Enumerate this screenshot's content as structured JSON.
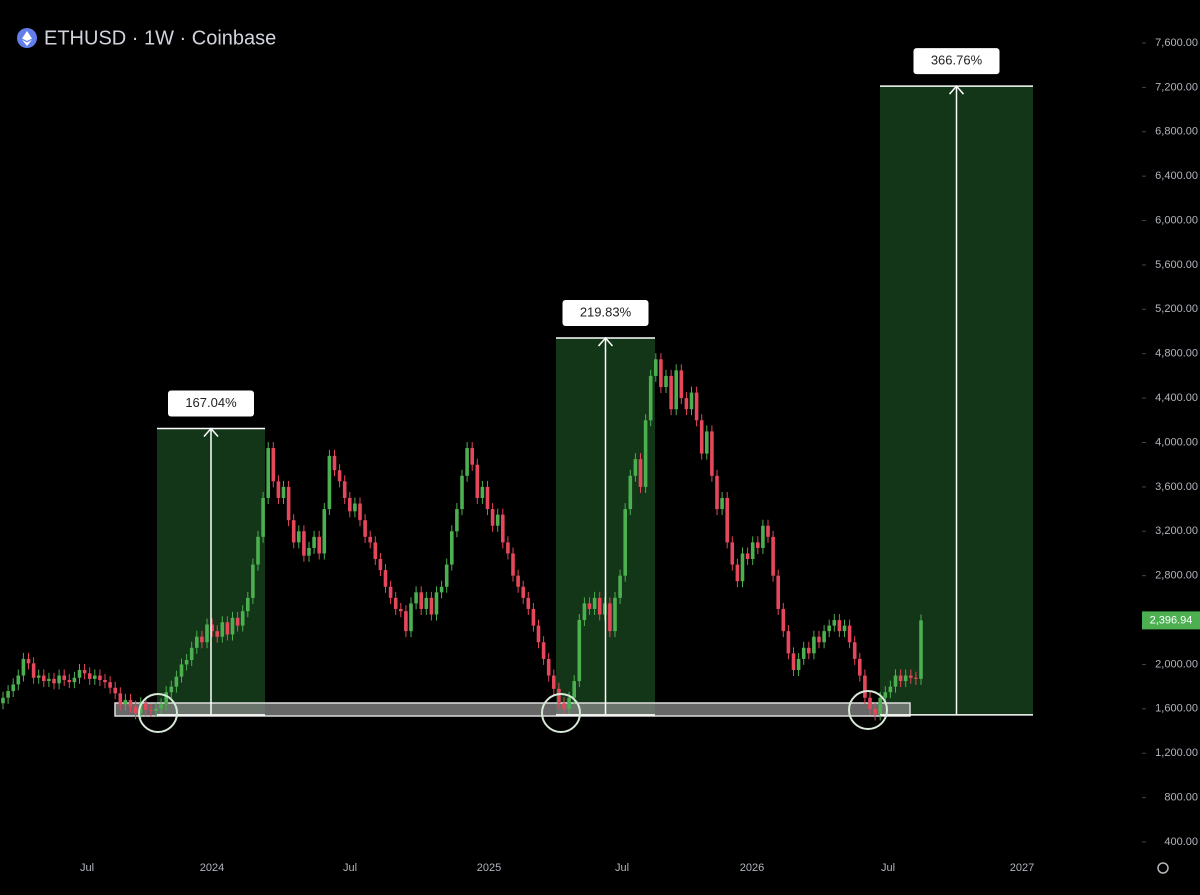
{
  "chart_data": {
    "type": "candlestick",
    "title": "ETHUSD · 1W · Coinbase",
    "first_open": 1650,
    "values": [
      1700,
      1760,
      1820,
      1900,
      2050,
      2010,
      1880,
      1900,
      1850,
      1870,
      1830,
      1900,
      1860,
      1840,
      1880,
      1950,
      1920,
      1870,
      1900,
      1860,
      1840,
      1790,
      1740,
      1640,
      1680,
      1620,
      1560,
      1650,
      1590,
      1580,
      1600,
      1640,
      1750,
      1800,
      1890,
      2000,
      2040,
      2150,
      2250,
      2200,
      2360,
      2300,
      2250,
      2380,
      2270,
      2420,
      2350,
      2480,
      2600,
      2900,
      3150,
      3500,
      3950,
      3650,
      3500,
      3600,
      3300,
      3100,
      3200,
      2980,
      3050,
      3150,
      3000,
      3400,
      3880,
      3750,
      3650,
      3500,
      3380,
      3450,
      3300,
      3150,
      3100,
      2950,
      2850,
      2700,
      2600,
      2500,
      2480,
      2300,
      2550,
      2650,
      2500,
      2600,
      2450,
      2650,
      2700,
      2900,
      3200,
      3400,
      3700,
      3950,
      3800,
      3500,
      3600,
      3400,
      3250,
      3350,
      3100,
      3000,
      2800,
      2700,
      2600,
      2500,
      2350,
      2200,
      2050,
      1900,
      1780,
      1650,
      1600,
      1700,
      1850,
      2400,
      2550,
      2500,
      2600,
      2450,
      2550,
      2300,
      2600,
      2800,
      3400,
      3700,
      3850,
      3600,
      4200,
      4600,
      4750,
      4500,
      4600,
      4300,
      4650,
      4400,
      4300,
      4450,
      4200,
      3900,
      4100,
      3700,
      3400,
      3500,
      3100,
      2900,
      2750,
      3000,
      2950,
      3100,
      3050,
      3250,
      3150,
      2800,
      2500,
      2300,
      2100,
      1950,
      2050,
      2150,
      2100,
      2250,
      2200,
      2300,
      2350,
      2400,
      2300,
      2350,
      2200,
      2050,
      1900,
      1700,
      1600,
      1550,
      1700,
      1750,
      1800,
      1900,
      1850,
      1900,
      1880,
      1870,
      2396.94
    ],
    "last_price_label": "2,396.94",
    "up_color": "#4caf50",
    "down_color": "#e5475b",
    "ylim": [
      400,
      7600
    ],
    "yticks": [
      {
        "value": 400,
        "label": "400.00"
      },
      {
        "value": 800,
        "label": "800.00"
      },
      {
        "value": 1200,
        "label": "1,200.00"
      },
      {
        "value": 1600,
        "label": "1,600.00"
      },
      {
        "value": 2000,
        "label": "2,000.00"
      },
      {
        "value": 2400,
        "label": "2,400.00"
      },
      {
        "value": 2800,
        "label": "2,800.00"
      },
      {
        "value": 3200,
        "label": "3,200.00"
      },
      {
        "value": 3600,
        "label": "3,600.00"
      },
      {
        "value": 4000,
        "label": "4,000.00"
      },
      {
        "value": 4400,
        "label": "4,400.00"
      },
      {
        "value": 4800,
        "label": "4,800.00"
      },
      {
        "value": 5200,
        "label": "5,200.00"
      },
      {
        "value": 5600,
        "label": "5,600.00"
      },
      {
        "value": 6000,
        "label": "6,000.00"
      },
      {
        "value": 6400,
        "label": "6,400.00"
      },
      {
        "value": 6800,
        "label": "6,800.00"
      },
      {
        "value": 7200,
        "label": "7,200.00"
      },
      {
        "value": 7600,
        "label": "7,600.00"
      }
    ],
    "xtick_labels": [
      "Jul",
      "2024",
      "Jul",
      "2025",
      "Jul",
      "2026",
      "Jul",
      "2027"
    ],
    "base": 1545,
    "measures": [
      {
        "value": 167.04,
        "label": "167.04%"
      },
      {
        "value": 219.83,
        "label": "219.83%"
      },
      {
        "value": 366.76,
        "label": "366.76%"
      }
    ]
  }
}
